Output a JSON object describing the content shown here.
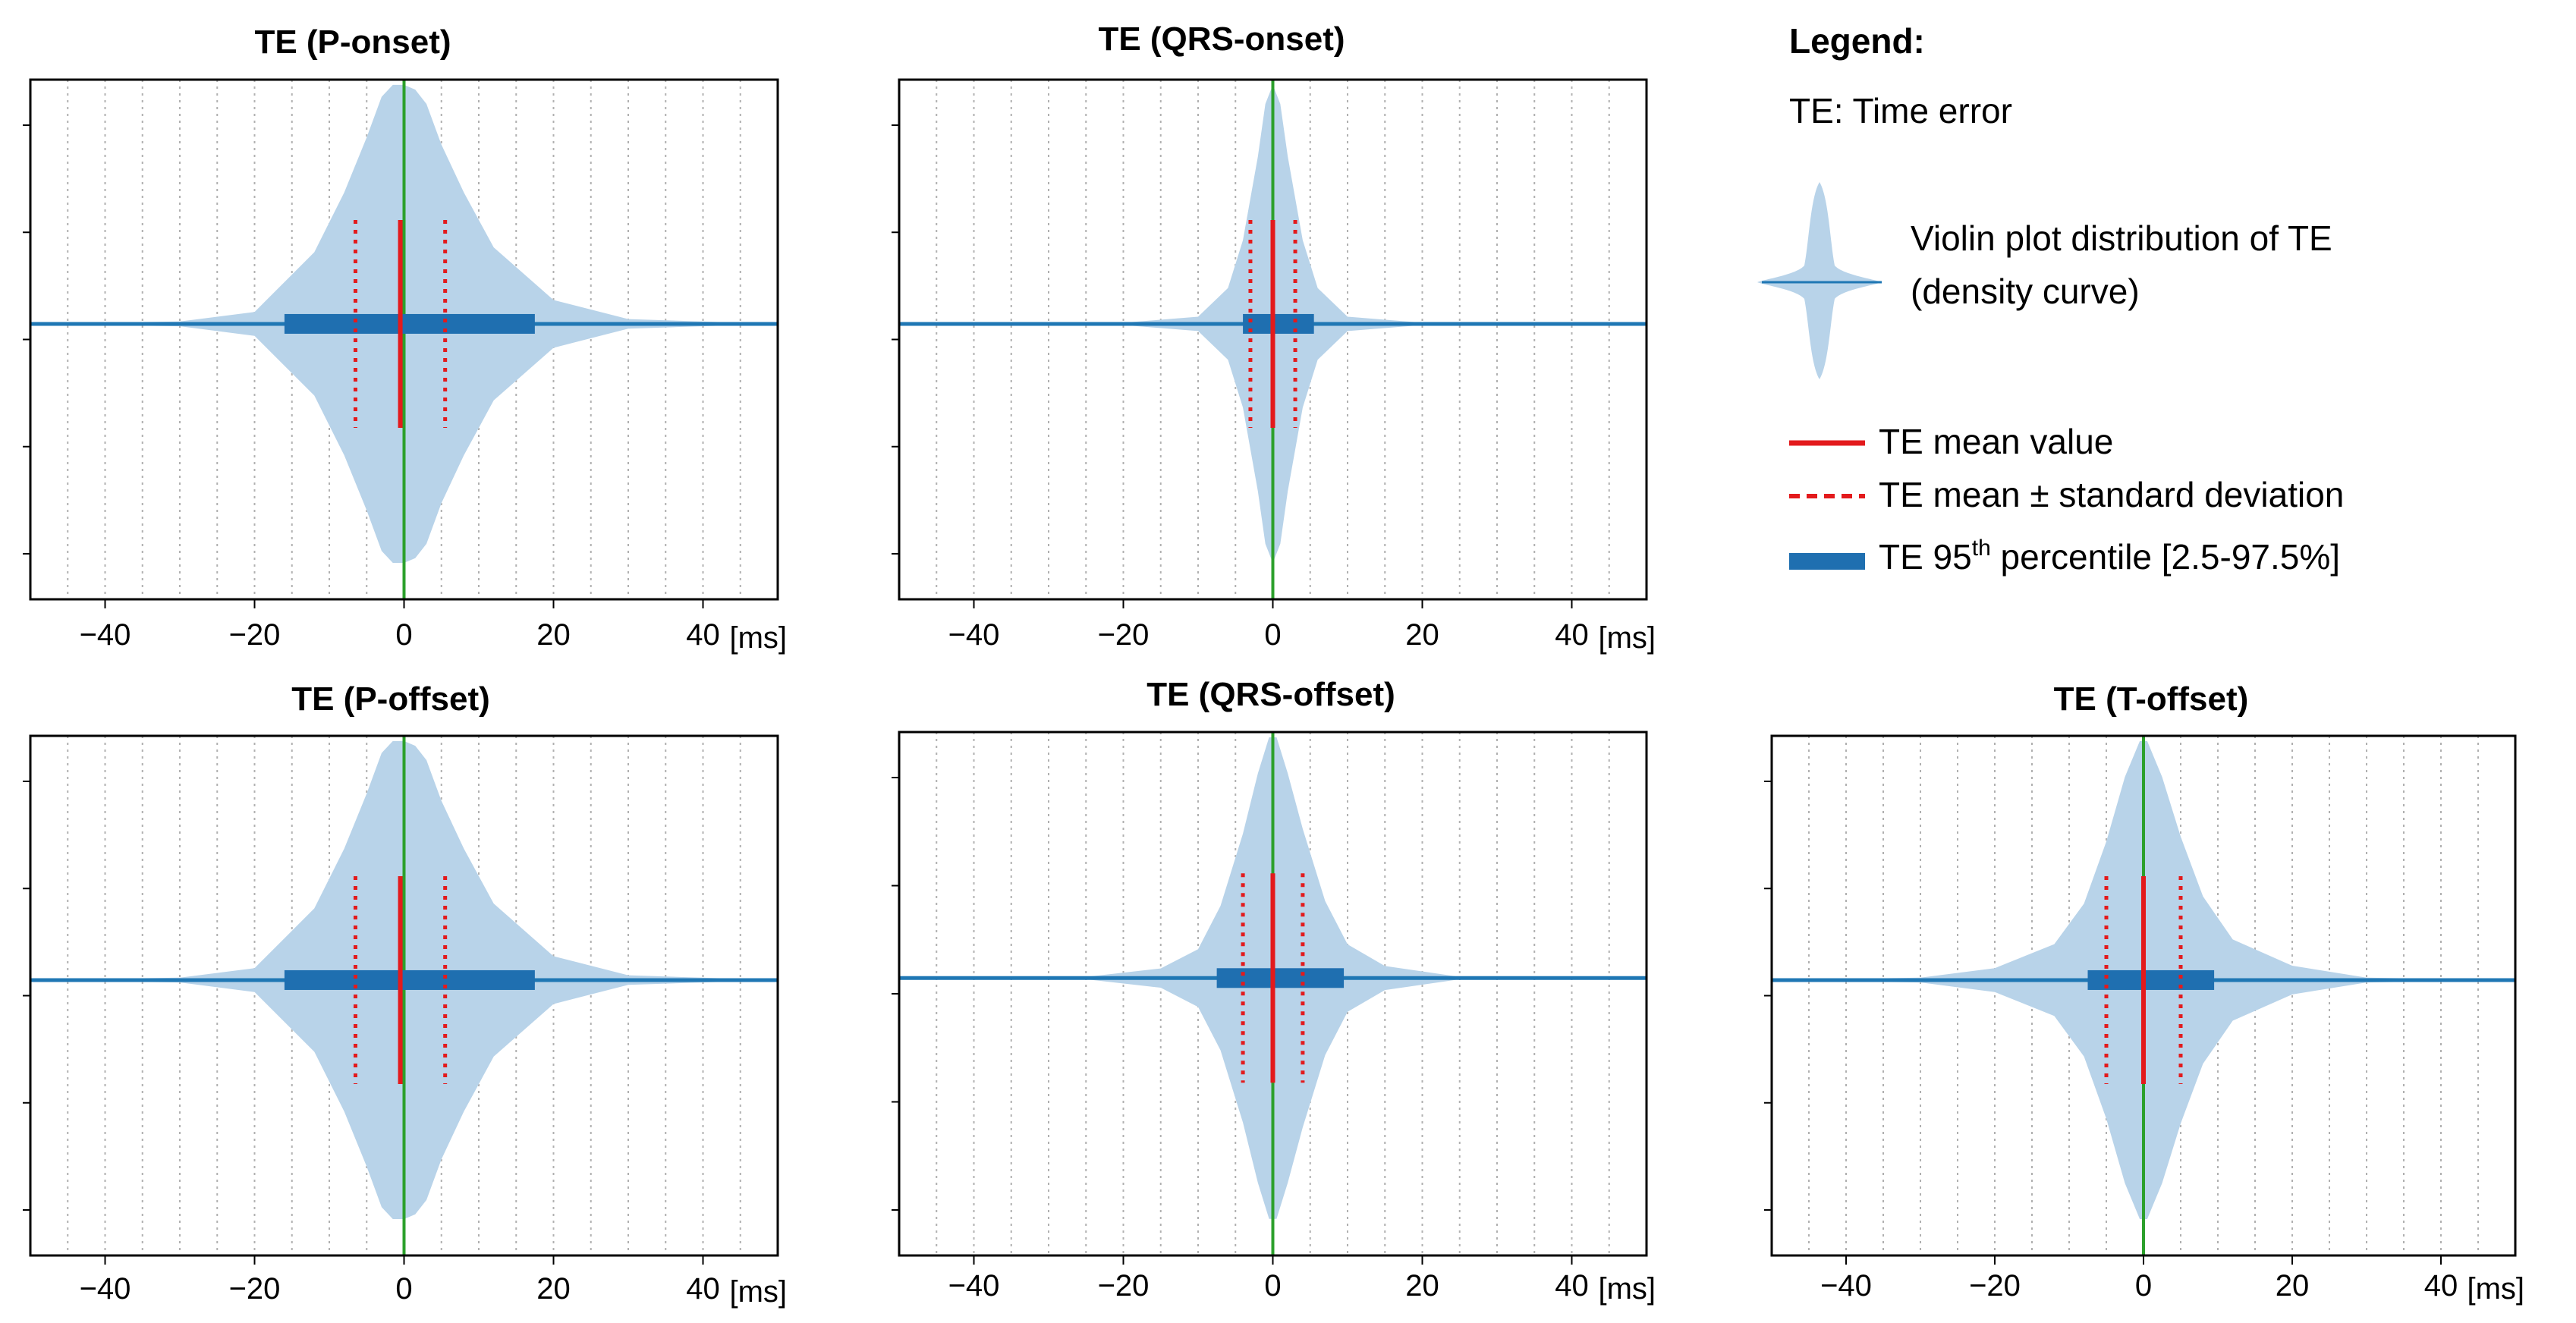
{
  "colors": {
    "violin": "#b8d3e9",
    "baseline": "#1f77b4",
    "percentile_box": "#1f6fb0",
    "mean": "#e31a1c",
    "std": "#e31a1c",
    "zero_line": "#2ca02c",
    "grid": "#b0b0b0"
  },
  "legend": {
    "title": "Legend:",
    "te_definition": "TE: Time error",
    "violin_line1": "Violin plot distribution of TE",
    "violin_line2": "(density curve)",
    "mean": "TE mean value",
    "std": "TE mean ± standard deviation",
    "percentile_prefix": "TE 95",
    "percentile_sup": "th",
    "percentile_suffix": " percentile [2.5-97.5%]"
  },
  "chart_data": [
    {
      "type": "violin",
      "title": "TE (P-onset)",
      "xlim": [
        -50,
        50
      ],
      "xticks": [
        -40,
        -20,
        0,
        20,
        40
      ],
      "xtick_labels": [
        "−40",
        "−20",
        "0",
        "20",
        "40"
      ],
      "unit_label": "[ms]",
      "grid": "vertical dotted every 5 ms",
      "mean": -0.5,
      "std": 6.0,
      "p2_5": -16,
      "p97_5": 17.5,
      "density_profile": {
        "x": [
          -50,
          -30,
          -20,
          -12,
          -8,
          -5,
          -3,
          -1.5,
          0,
          1.5,
          3,
          5,
          8,
          12,
          20,
          30,
          50
        ],
        "halfwidth": [
          0,
          0.01,
          0.05,
          0.3,
          0.55,
          0.78,
          0.95,
          1.0,
          1.0,
          0.98,
          0.92,
          0.75,
          0.55,
          0.32,
          0.1,
          0.02,
          0
        ]
      }
    },
    {
      "type": "violin",
      "title": "TE (QRS-onset)",
      "xlim": [
        -50,
        50
      ],
      "xticks": [
        -40,
        -20,
        0,
        20,
        40
      ],
      "xtick_labels": [
        "−40",
        "−20",
        "0",
        "20",
        "40"
      ],
      "unit_label": "[ms]",
      "grid": "vertical dotted every 5 ms",
      "mean": 0,
      "std": 3.0,
      "p2_5": -4,
      "p97_5": 5.5,
      "density_profile": {
        "x": [
          -50,
          -20,
          -10,
          -6,
          -4,
          -2,
          -1,
          0,
          1,
          2,
          4,
          6,
          10,
          20,
          50
        ],
        "halfwidth": [
          0,
          0.005,
          0.03,
          0.15,
          0.35,
          0.7,
          0.92,
          1.0,
          0.92,
          0.7,
          0.35,
          0.15,
          0.03,
          0.005,
          0
        ]
      }
    },
    {
      "type": "violin",
      "title": "TE (P-offset)",
      "xlim": [
        -50,
        50
      ],
      "xticks": [
        -40,
        -20,
        0,
        20,
        40
      ],
      "xtick_labels": [
        "−40",
        "−20",
        "0",
        "20",
        "40"
      ],
      "unit_label": "[ms]",
      "grid": "vertical dotted every 5 ms",
      "mean": -0.5,
      "std": 6.0,
      "p2_5": -16,
      "p97_5": 17.5,
      "density_profile": {
        "x": [
          -50,
          -30,
          -20,
          -12,
          -8,
          -5,
          -3,
          -1.5,
          0,
          1.5,
          3,
          5,
          8,
          12,
          20,
          30,
          50
        ],
        "halfwidth": [
          0,
          0.01,
          0.05,
          0.3,
          0.55,
          0.78,
          0.95,
          1.0,
          1.0,
          0.98,
          0.92,
          0.75,
          0.55,
          0.32,
          0.1,
          0.02,
          0
        ]
      }
    },
    {
      "type": "violin",
      "title": "TE (QRS-offset)",
      "xlim": [
        -50,
        50
      ],
      "xticks": [
        -40,
        -20,
        0,
        20,
        40
      ],
      "xtick_labels": [
        "−40",
        "−20",
        "0",
        "20",
        "40"
      ],
      "unit_label": "[ms]",
      "grid": "vertical dotted every 5 ms",
      "mean": 0,
      "std": 4.0,
      "p2_5": -7.5,
      "p97_5": 9.5,
      "density_profile": {
        "x": [
          -50,
          -25,
          -15,
          -10,
          -7,
          -4,
          -2,
          -0.5,
          0.5,
          2,
          4,
          7,
          10,
          15,
          25,
          50
        ],
        "halfwidth": [
          0,
          0.005,
          0.04,
          0.12,
          0.3,
          0.6,
          0.85,
          1.0,
          1.0,
          0.85,
          0.62,
          0.32,
          0.14,
          0.05,
          0.005,
          0
        ]
      }
    },
    {
      "type": "violin",
      "title": "TE (T-offset)",
      "xlim": [
        -50,
        50
      ],
      "xticks": [
        -40,
        -20,
        0,
        20,
        40
      ],
      "xtick_labels": [
        "−40",
        "−20",
        "0",
        "20",
        "40"
      ],
      "unit_label": "[ms]",
      "grid": "vertical dotted every 5 ms",
      "mean": 0,
      "std": 5.0,
      "p2_5": -7.5,
      "p97_5": 9.5,
      "density_profile": {
        "x": [
          -50,
          -30,
          -20,
          -12,
          -8,
          -5,
          -2.5,
          -0.5,
          0.5,
          2.5,
          5,
          8,
          12,
          20,
          30,
          50
        ],
        "halfwidth": [
          0,
          0.01,
          0.05,
          0.15,
          0.32,
          0.58,
          0.85,
          1.0,
          1.0,
          0.85,
          0.6,
          0.35,
          0.17,
          0.06,
          0.01,
          0
        ]
      }
    }
  ]
}
